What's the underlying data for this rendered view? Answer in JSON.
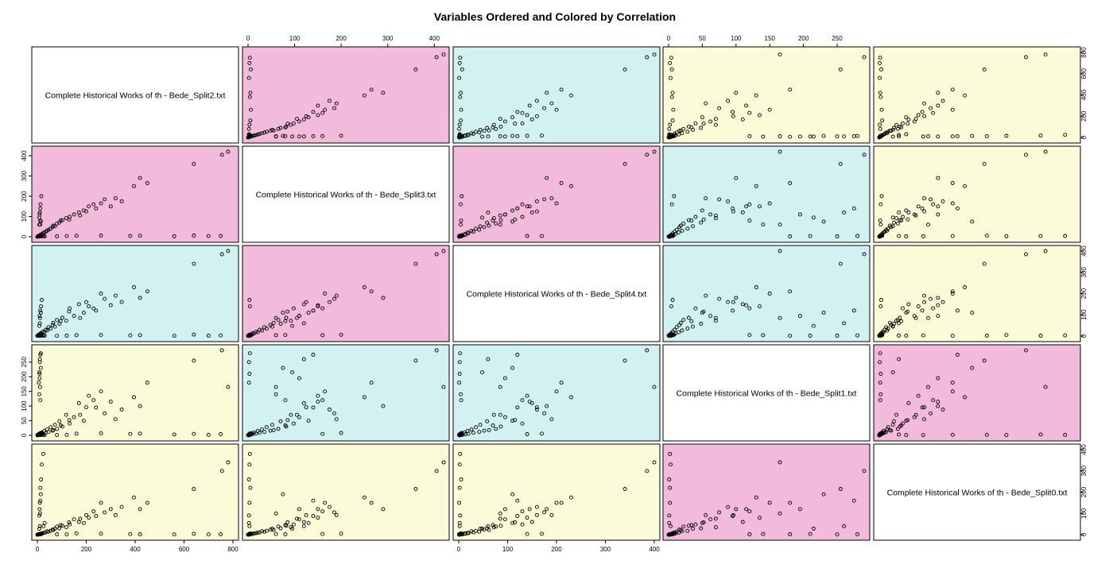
{
  "chart_data": {
    "type": "scatter",
    "title": "Variables Ordered and Colored by Correlation",
    "variables": [
      {
        "label": "Complete Historical Works of th - Bede_Split2.txt",
        "range": [
          0,
          800
        ],
        "ticks": [
          0,
          200,
          400,
          600,
          800
        ]
      },
      {
        "label": "Complete Historical Works of th - Bede_Split3.txt",
        "range": [
          0,
          420
        ],
        "ticks": [
          0,
          100,
          200,
          300,
          400
        ]
      },
      {
        "label": "Complete Historical Works of th - Bede_Split4.txt",
        "range": [
          0,
          400
        ],
        "ticks": [
          0,
          100,
          200,
          300,
          400
        ]
      },
      {
        "label": "Complete Historical Works of th - Bede_Split1.txt",
        "range": [
          0,
          290
        ],
        "ticks": [
          0,
          50,
          100,
          150,
          200,
          250
        ]
      },
      {
        "label": "Complete Historical Works of th - Bede_Split0.txt",
        "range": [
          0,
          400
        ],
        "ticks": [
          0,
          100,
          200,
          300,
          400
        ]
      }
    ],
    "axis_placement": {
      "top": [
        1,
        3
      ],
      "bottom": [
        0,
        2
      ],
      "left": [
        1,
        3
      ],
      "right": [
        0,
        2,
        4
      ]
    },
    "panel_colors": {
      "high": "#f2bbdb",
      "medium": "#d2f2f2",
      "low": "#fbfbd8",
      "diagonal": "#ffffff"
    },
    "correlation_levels": [
      [
        "diag",
        "high",
        "medium",
        "low",
        "low"
      ],
      [
        "high",
        "diag",
        "high",
        "medium",
        "low"
      ],
      [
        "medium",
        "high",
        "diag",
        "medium",
        "low"
      ],
      [
        "low",
        "medium",
        "medium",
        "diag",
        "high"
      ],
      [
        "low",
        "low",
        "low",
        "high",
        "diag"
      ]
    ],
    "observations": [
      [
        780,
        420,
        400,
        165,
        340
      ],
      [
        755,
        405,
        385,
        290,
        300
      ],
      [
        640,
        360,
        340,
        255,
        215
      ],
      [
        450,
        265,
        210,
        180,
        150
      ],
      [
        420,
        290,
        180,
        100,
        120
      ],
      [
        395,
        250,
        230,
        130,
        175
      ],
      [
        345,
        175,
        160,
        88,
        130
      ],
      [
        320,
        190,
        190,
        55,
        92
      ],
      [
        300,
        150,
        145,
        115,
        120
      ],
      [
        275,
        185,
        175,
        75,
        105
      ],
      [
        260,
        165,
        200,
        150,
        150
      ],
      [
        240,
        140,
        120,
        95,
        88
      ],
      [
        210,
        150,
        140,
        135,
        80
      ],
      [
        190,
        130,
        110,
        50,
        55
      ],
      [
        170,
        120,
        150,
        110,
        60
      ],
      [
        150,
        110,
        95,
        62,
        72
      ],
      [
        132,
        98,
        130,
        40,
        48
      ],
      [
        118,
        92,
        72,
        70,
        35
      ],
      [
        102,
        82,
        86,
        30,
        42
      ],
      [
        90,
        70,
        58,
        48,
        30
      ],
      [
        80,
        65,
        76,
        22,
        38
      ],
      [
        72,
        52,
        44,
        36,
        28
      ],
      [
        62,
        48,
        52,
        16,
        24
      ],
      [
        54,
        40,
        35,
        28,
        18
      ],
      [
        46,
        35,
        42,
        12,
        14
      ],
      [
        40,
        30,
        26,
        20,
        16
      ],
      [
        34,
        25,
        30,
        9,
        11
      ],
      [
        28,
        21,
        18,
        15,
        9
      ],
      [
        22,
        17,
        20,
        6,
        7
      ],
      [
        18,
        13,
        12,
        10,
        6
      ],
      [
        14,
        10,
        14,
        4,
        4
      ],
      [
        10,
        8,
        6,
        7,
        3
      ],
      [
        7,
        5,
        8,
        2,
        2
      ],
      [
        5,
        3,
        3,
        4,
        1
      ],
      [
        3,
        2,
        4,
        1,
        1
      ],
      [
        2,
        1,
        1,
        2,
        0
      ],
      [
        1,
        1,
        2,
        0,
        0
      ],
      [
        0,
        0,
        1,
        1,
        0
      ],
      [
        24,
        4,
        3,
        2,
        380
      ],
      [
        18,
        3,
        2,
        3,
        330
      ],
      [
        15,
        2,
        5,
        1,
        260
      ],
      [
        12,
        5,
        2,
        2,
        220
      ],
      [
        10,
        3,
        1,
        2,
        150
      ],
      [
        8,
        2,
        3,
        1,
        90
      ],
      [
        30,
        2,
        2,
        1,
        55
      ],
      [
        25,
        3,
        2,
        3,
        40
      ],
      [
        160,
        5,
        4,
        6,
        6
      ],
      [
        260,
        6,
        5,
        7,
        5
      ],
      [
        380,
        4,
        3,
        5,
        3
      ],
      [
        420,
        5,
        4,
        6,
        2
      ],
      [
        640,
        6,
        7,
        5,
        4
      ],
      [
        700,
        3,
        2,
        2,
        1
      ],
      [
        750,
        4,
        3,
        4,
        2
      ],
      [
        560,
        2,
        1,
        3,
        1
      ],
      [
        120,
        3,
        2,
        2,
        1
      ],
      [
        80,
        2,
        1,
        1,
        2
      ],
      [
        14,
        4,
        3,
        280,
        2
      ],
      [
        10,
        2,
        2,
        250,
        1
      ],
      [
        9,
        3,
        2,
        210,
        3
      ],
      [
        6,
        2,
        1,
        180,
        2
      ],
      [
        8,
        60,
        4,
        140,
        3
      ],
      [
        12,
        80,
        5,
        120,
        2
      ],
      [
        10,
        120,
        60,
        260,
        40
      ],
      [
        8,
        95,
        48,
        215,
        28
      ],
      [
        12,
        140,
        120,
        275,
        160
      ],
      [
        9,
        110,
        95,
        195,
        120
      ],
      [
        14,
        75,
        110,
        230,
        190
      ],
      [
        11,
        60,
        85,
        165,
        100
      ],
      [
        16,
        200,
        6,
        8,
        5
      ],
      [
        13,
        160,
        4,
        5,
        3
      ],
      [
        18,
        3,
        170,
        6,
        4
      ],
      [
        15,
        4,
        140,
        4,
        3
      ],
      [
        65,
        55,
        62,
        18,
        22
      ],
      [
        95,
        80,
        70,
        34,
        45
      ],
      [
        130,
        85,
        115,
        52,
        58
      ],
      [
        200,
        125,
        160,
        96,
        92
      ],
      [
        175,
        105,
        85,
        70,
        75
      ],
      [
        230,
        160,
        130,
        120,
        110
      ]
    ]
  }
}
